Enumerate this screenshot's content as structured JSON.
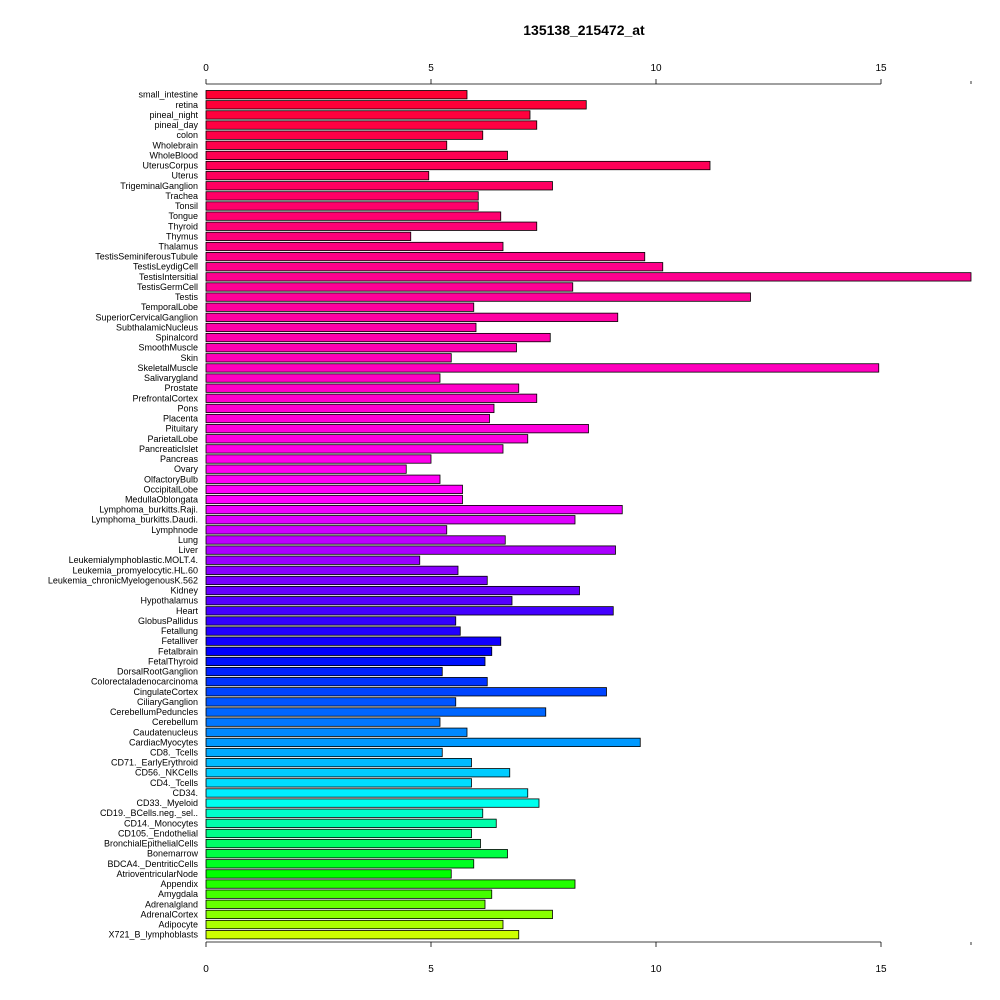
{
  "chart_data": {
    "type": "bar",
    "orientation": "horizontal",
    "title": "135138_215472_at",
    "xlabel": "",
    "ylabel": "",
    "xlim": [
      0,
      17
    ],
    "x_ticks": [
      0,
      5,
      10,
      15
    ],
    "grid": false,
    "legend": "none",
    "categories": [
      "small_intestine",
      "retina",
      "pineal_night",
      "pineal_day",
      "colon",
      "Wholebrain",
      "WholeBlood",
      "UterusCorpus",
      "Uterus",
      "TrigeminalGanglion",
      "Trachea",
      "Tonsil",
      "Tongue",
      "Thyroid",
      "Thymus",
      "Thalamus",
      "TestisSeminiferousTubule",
      "TestisLeydigCell",
      "TestisIntersitial",
      "TestisGermCell",
      "Testis",
      "TemporalLobe",
      "SuperiorCervicalGanglion",
      "SubthalamicNucleus",
      "Spinalcord",
      "SmoothMuscle",
      "Skin",
      "SkeletalMuscle",
      "Salivarygland",
      "Prostate",
      "PrefrontalCortex",
      "Pons",
      "Placenta",
      "Pituitary",
      "ParietalLobe",
      "PancreaticIslet",
      "Pancreas",
      "Ovary",
      "OlfactoryBulb",
      "OccipitalLobe",
      "MedullaOblongata",
      "Lymphoma_burkitts.Raji.",
      "Lymphoma_burkitts.Daudi.",
      "Lymphnode",
      "Lung",
      "Liver",
      "Leukemialymphoblastic.MOLT.4.",
      "Leukemia_promyelocytic.HL.60",
      "Leukemia_chronicMyelogenousK.562",
      "Kidney",
      "Hypothalamus",
      "Heart",
      "GlobusPallidus",
      "Fetallung",
      "Fetalliver",
      "Fetalbrain",
      "FetalThyroid",
      "DorsalRootGanglion",
      "Colorectaladenocarcinoma",
      "CingulateCortex",
      "CiliaryGanglion",
      "CerebellumPeduncles",
      "Cerebellum",
      "Caudatenucleus",
      "CardiacMyocytes",
      "CD8._Tcells",
      "CD71._EarlyErythroid",
      "CD56._NKCells",
      "CD4._Tcells",
      "CD34.",
      "CD33._Myeloid",
      "CD19._BCells.neg._sel..",
      "CD14._Monocytes",
      "CD105._Endothelial",
      "BronchialEpithelialCells",
      "Bonemarrow",
      "BDCA4._DentriticCells",
      "AtrioventricularNode",
      "Appendix",
      "Amygdala",
      "Adrenalgland",
      "AdrenalCortex",
      "Adipocyte",
      "X721_B_lymphoblasts"
    ],
    "values": [
      5.8,
      8.45,
      7.2,
      7.35,
      6.15,
      5.35,
      6.7,
      11.2,
      4.95,
      7.7,
      6.05,
      6.05,
      6.55,
      7.35,
      4.55,
      6.6,
      9.75,
      10.15,
      17.0,
      8.15,
      12.1,
      5.95,
      9.15,
      6.0,
      7.65,
      6.9,
      5.45,
      14.95,
      5.2,
      6.95,
      7.35,
      6.4,
      6.3,
      8.5,
      7.15,
      6.6,
      5.0,
      4.45,
      5.2,
      5.7,
      5.7,
      9.25,
      8.2,
      5.35,
      6.65,
      9.1,
      4.75,
      5.6,
      6.25,
      8.3,
      6.8,
      9.05,
      5.55,
      5.65,
      6.55,
      6.35,
      6.2,
      5.25,
      6.25,
      8.9,
      5.55,
      7.55,
      5.2,
      5.8,
      9.65,
      5.25,
      5.9,
      6.75,
      5.9,
      7.15,
      7.4,
      6.15,
      6.45,
      5.9,
      6.1,
      6.7,
      5.95,
      5.45,
      8.2,
      6.35,
      6.2,
      7.7,
      6.6,
      6.95
    ],
    "bar_colors": [
      "#ff0033",
      "#ff0038",
      "#ff003d",
      "#ff0042",
      "#ff0047",
      "#ff004c",
      "#ff0052",
      "#ff0057",
      "#ff005c",
      "#ff0061",
      "#ff0066",
      "#ff006b",
      "#ff0070",
      "#ff0075",
      "#ff007a",
      "#ff007f",
      "#ff0085",
      "#ff008a",
      "#ff008f",
      "#ff0094",
      "#ff0099",
      "#ff009e",
      "#ff00a3",
      "#ff00a8",
      "#ff00ad",
      "#ff00b2",
      "#ff00b8",
      "#ff00bd",
      "#ff00c2",
      "#ff00c7",
      "#ff00cc",
      "#ff00d1",
      "#ff00d6",
      "#ff00db",
      "#ff00e0",
      "#ff00e5",
      "#ff00eb",
      "#ff00f0",
      "#ff00f5",
      "#ff00fa",
      "#ff00ff",
      "#ee00ff",
      "#dd00ff",
      "#cc00ff",
      "#bb00ff",
      "#aa00ff",
      "#9900ff",
      "#8800ff",
      "#7700ff",
      "#6600ff",
      "#5500ff",
      "#4400ff",
      "#3300ff",
      "#2200ff",
      "#1100ff",
      "#0000ff",
      "#0011ff",
      "#0022ff",
      "#0033ff",
      "#0044ff",
      "#0055ff",
      "#0066ff",
      "#0077ff",
      "#0088ff",
      "#0099ff",
      "#00aaff",
      "#00bbff",
      "#00ccff",
      "#00ddff",
      "#00eeff",
      "#00ffee",
      "#00ffcc",
      "#00ffaa",
      "#00ff88",
      "#00ff66",
      "#00ff44",
      "#00ff22",
      "#00ff00",
      "#22ff00",
      "#44ff00",
      "#66ff00",
      "#88ff00",
      "#aaff00",
      "#ccff00"
    ]
  }
}
